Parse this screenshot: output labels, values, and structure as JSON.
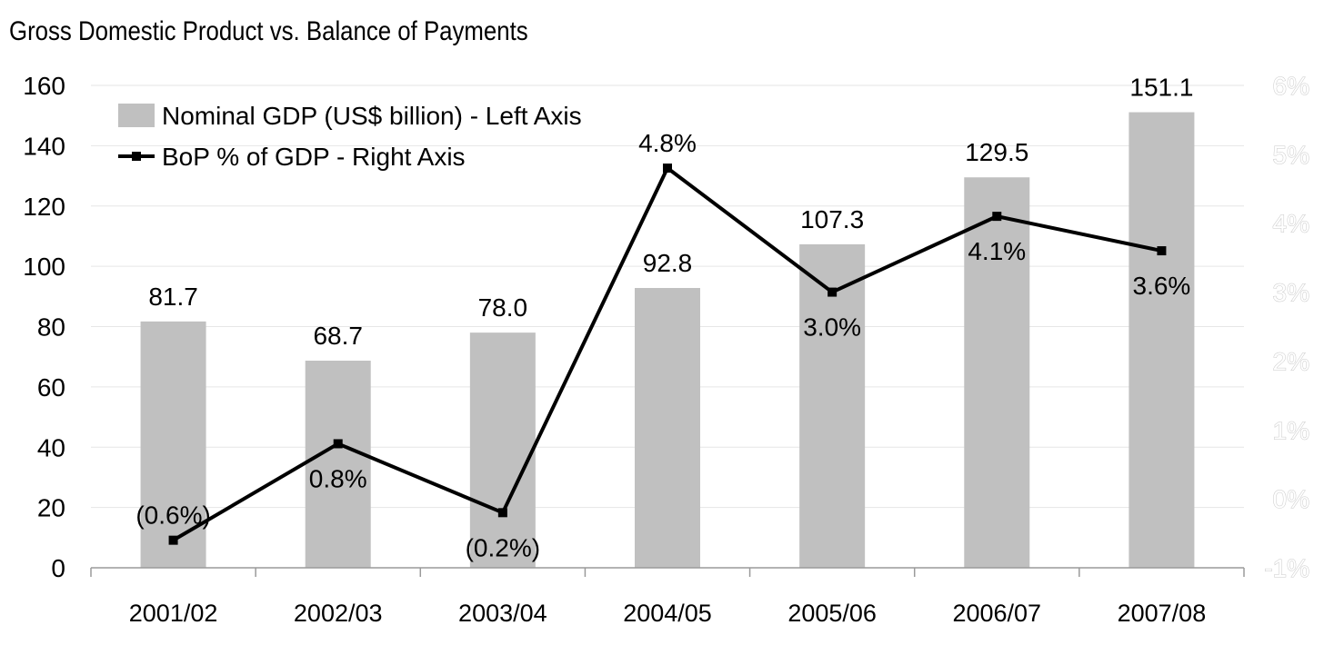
{
  "chart_data": {
    "type": "bar",
    "title": "Gross Domestic Product vs. Balance of Payments",
    "categories": [
      "2001/02",
      "2002/03",
      "2003/04",
      "2004/05",
      "2005/06",
      "2006/07",
      "2007/08"
    ],
    "series": [
      {
        "name": "Nominal GDP (US$ billion) - Left Axis",
        "type": "bar",
        "axis": "left",
        "values": [
          81.7,
          68.7,
          78.0,
          92.8,
          107.3,
          129.5,
          151.1
        ],
        "labels": [
          "81.7",
          "68.7",
          "78.0",
          "92.8",
          "107.3",
          "129.5",
          "151.1"
        ],
        "color": "#c0c0c0"
      },
      {
        "name": "BoP % of GDP - Right Axis",
        "type": "line",
        "axis": "right",
        "values": [
          -0.6,
          0.8,
          -0.2,
          4.8,
          3.0,
          4.1,
          3.6
        ],
        "labels": [
          "(0.6%)",
          "0.8%",
          "(0.2%)",
          "4.8%",
          "3.0%",
          "4.1%",
          "3.6%"
        ],
        "color": "#000000"
      }
    ],
    "left_axis": {
      "ylim": [
        0,
        160
      ],
      "ticks": [
        "0",
        "20",
        "40",
        "60",
        "80",
        "100",
        "120",
        "140",
        "160"
      ]
    },
    "right_axis": {
      "ylim": [
        -1,
        6
      ],
      "ticks": [
        "-1%",
        "0%",
        "1%",
        "2%",
        "3%",
        "4%",
        "5%",
        "6%"
      ]
    },
    "grid": true,
    "legend_position": "top-left"
  }
}
